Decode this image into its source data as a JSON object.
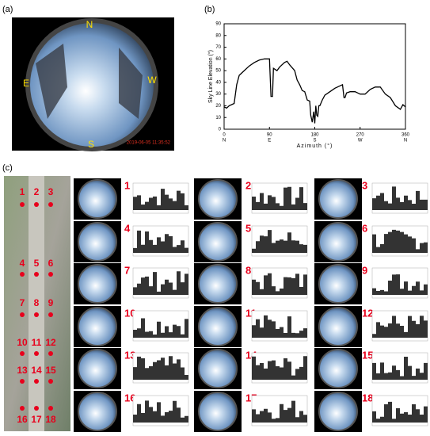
{
  "panels": {
    "a": "(a)",
    "b": "(b)",
    "c": "(c)"
  },
  "fisheye": {
    "directions": {
      "n": "N",
      "e": "E",
      "w": "W",
      "s": "S"
    },
    "timestamp": "2019-06-05 11:35:52"
  },
  "chart_data": {
    "type": "line",
    "ylabel": "Sky Line Elevation (°)",
    "xlabel": "Azimuth (°)",
    "x": [
      0,
      5,
      10,
      20,
      25,
      30,
      40,
      50,
      60,
      70,
      80,
      90,
      93,
      96,
      98,
      105,
      110,
      120,
      125,
      130,
      140,
      145,
      150,
      155,
      160,
      165,
      170,
      172,
      175,
      178,
      180,
      182,
      184,
      186,
      188,
      190,
      195,
      200,
      210,
      220,
      230,
      235,
      238,
      240,
      243,
      250,
      260,
      265,
      270,
      280,
      290,
      300,
      310,
      320,
      330,
      340,
      350,
      355,
      360
    ],
    "values": [
      19,
      18,
      20,
      22,
      38,
      46,
      50,
      54,
      57,
      59,
      60,
      60,
      28,
      28,
      52,
      50,
      53,
      57,
      58,
      55,
      50,
      42,
      38,
      33,
      32,
      25,
      24,
      12,
      6,
      15,
      5,
      20,
      12,
      11,
      20,
      20,
      25,
      29,
      32,
      35,
      37,
      38,
      27,
      27,
      31,
      32,
      32,
      31,
      30,
      30,
      34,
      36,
      36,
      30,
      27,
      20,
      17,
      21,
      19
    ],
    "color": "#000000",
    "xlim": [
      0,
      360
    ],
    "ylim": [
      0,
      90
    ],
    "xticks": [
      0,
      90,
      180,
      270,
      360
    ],
    "xtick_directions": [
      "N",
      "E",
      "S",
      "W",
      "N"
    ],
    "yticks": [
      0,
      10,
      20,
      30,
      40,
      50,
      60,
      70,
      80,
      90
    ]
  },
  "points": [
    "1",
    "2",
    "3",
    "4",
    "5",
    "6",
    "7",
    "8",
    "9",
    "10",
    "11",
    "12",
    "13",
    "14",
    "15",
    "16",
    "17",
    "18"
  ]
}
